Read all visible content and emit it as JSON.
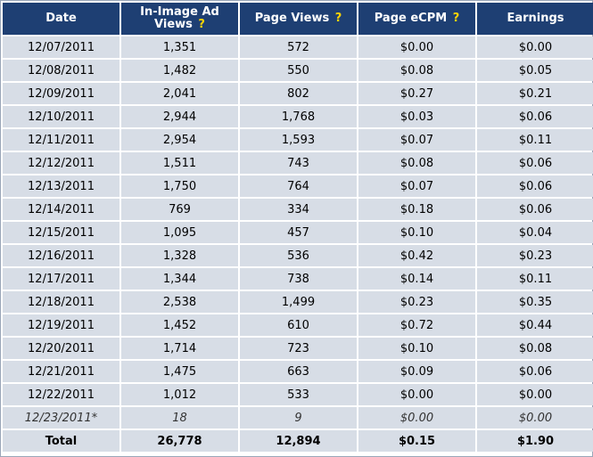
{
  "table": {
    "headers": [
      {
        "label": "Date",
        "help": ""
      },
      {
        "label": "In-Image Ad Views",
        "help": "?"
      },
      {
        "label": "Page Views",
        "help": "?"
      },
      {
        "label": "Page eCPM",
        "help": "?"
      },
      {
        "label": "Earnings",
        "help": ""
      }
    ],
    "rows": [
      [
        "12/07/2011",
        "1,351",
        "572",
        "$0.00",
        "$0.00"
      ],
      [
        "12/08/2011",
        "1,482",
        "550",
        "$0.08",
        "$0.05"
      ],
      [
        "12/09/2011",
        "2,041",
        "802",
        "$0.27",
        "$0.21"
      ],
      [
        "12/10/2011",
        "2,944",
        "1,768",
        "$0.03",
        "$0.06"
      ],
      [
        "12/11/2011",
        "2,954",
        "1,593",
        "$0.07",
        "$0.11"
      ],
      [
        "12/12/2011",
        "1,511",
        "743",
        "$0.08",
        "$0.06"
      ],
      [
        "12/13/2011",
        "1,750",
        "764",
        "$0.07",
        "$0.06"
      ],
      [
        "12/14/2011",
        "769",
        "334",
        "$0.18",
        "$0.06"
      ],
      [
        "12/15/2011",
        "1,095",
        "457",
        "$0.10",
        "$0.04"
      ],
      [
        "12/16/2011",
        "1,328",
        "536",
        "$0.42",
        "$0.23"
      ],
      [
        "12/17/2011",
        "1,344",
        "738",
        "$0.14",
        "$0.11"
      ],
      [
        "12/18/2011",
        "2,538",
        "1,499",
        "$0.23",
        "$0.35"
      ],
      [
        "12/19/2011",
        "1,452",
        "610",
        "$0.72",
        "$0.44"
      ],
      [
        "12/20/2011",
        "1,714",
        "723",
        "$0.10",
        "$0.08"
      ],
      [
        "12/21/2011",
        "1,475",
        "663",
        "$0.09",
        "$0.06"
      ],
      [
        "12/22/2011",
        "1,012",
        "533",
        "$0.00",
        "$0.00"
      ]
    ],
    "partial_row": [
      "12/23/2011*",
      "18",
      "9",
      "$0.00",
      "$0.00"
    ],
    "total_row": [
      "Total",
      "26,778",
      "12,894",
      "$0.15",
      "$1.90"
    ]
  },
  "colors": {
    "header_bg": "#1e3f73",
    "header_text": "#ffffff",
    "help_mark": "#ffd400",
    "cell_bg": "#d7dde6"
  }
}
